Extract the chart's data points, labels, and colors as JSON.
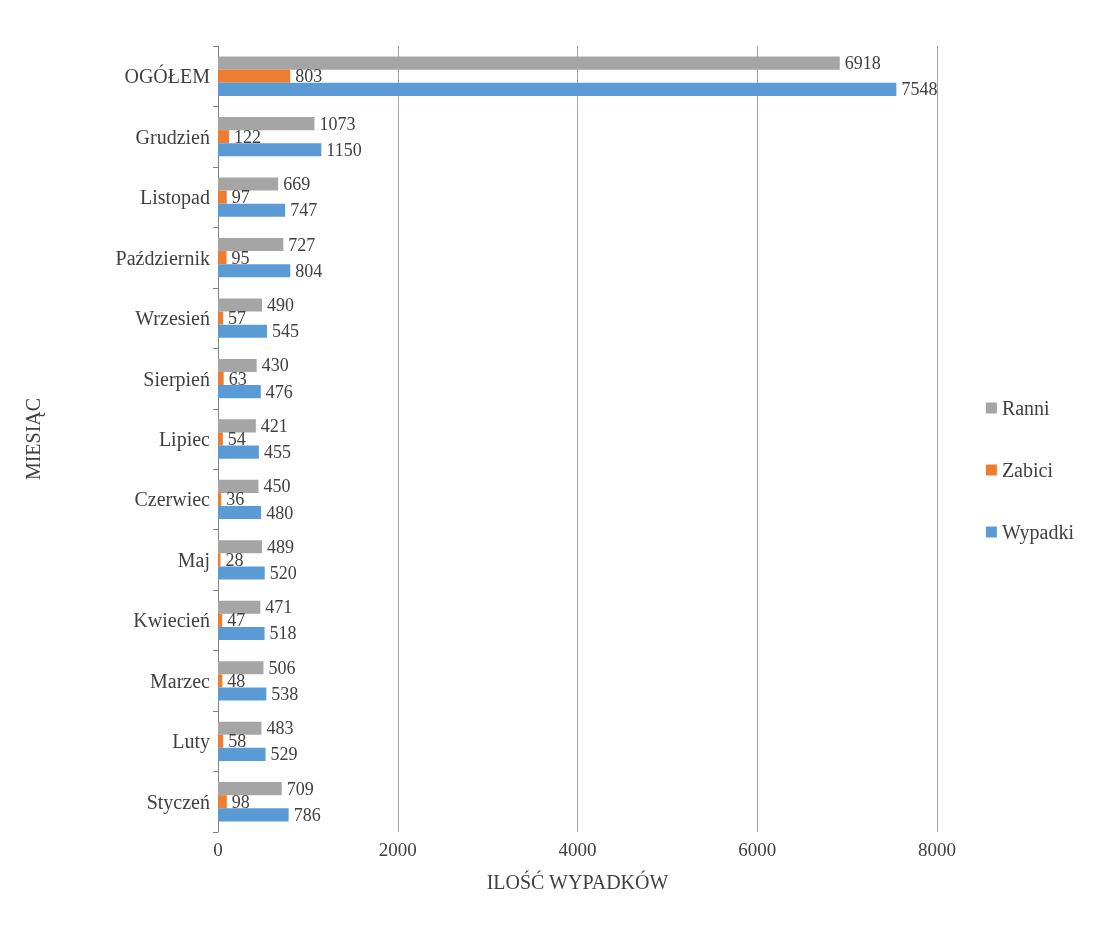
{
  "chart_data": {
    "type": "bar",
    "orientation": "horizontal",
    "xlabel": "ILOŚĆ WYPADKÓW",
    "ylabel": "MIESIĄC",
    "categories": [
      "OGÓŁEM",
      "Grudzień",
      "Listopad",
      "Październik",
      "Wrzesień",
      "Sierpień",
      "Lipiec",
      "Czerwiec",
      "Maj",
      "Kwiecień",
      "Marzec",
      "Luty",
      "Styczeń"
    ],
    "series": [
      {
        "name": "Ranni",
        "color": "#a5a5a5",
        "values": [
          6918,
          1073,
          669,
          727,
          490,
          430,
          421,
          450,
          489,
          471,
          506,
          483,
          709
        ]
      },
      {
        "name": "Zabici",
        "color": "#ed7d31",
        "values": [
          803,
          122,
          97,
          95,
          57,
          63,
          54,
          36,
          28,
          47,
          48,
          58,
          98
        ]
      },
      {
        "name": "Wypadki",
        "color": "#5b9bd5",
        "values": [
          7548,
          1150,
          747,
          804,
          545,
          476,
          455,
          480,
          520,
          518,
          538,
          529,
          786
        ]
      }
    ],
    "xlim": [
      0,
      8000
    ],
    "xticks": [
      0,
      2000,
      4000,
      6000,
      8000
    ],
    "grid": "x",
    "legend": "right",
    "data_labels": true
  }
}
